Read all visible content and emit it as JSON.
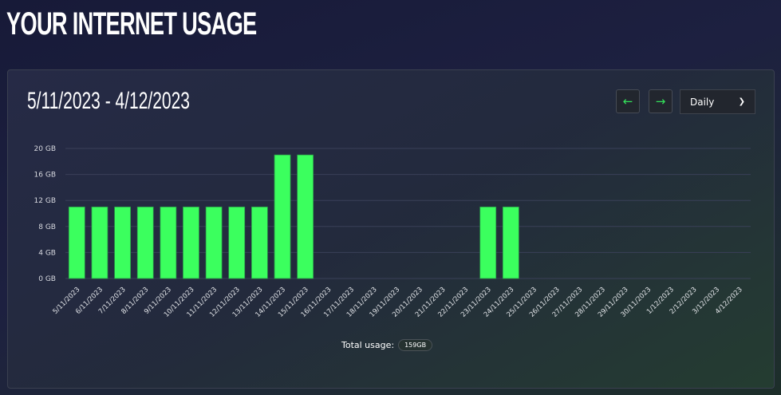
{
  "page_title": "YOUR INTERNET USAGE",
  "date_range": "5/11/2023 - 4/12/2023",
  "controls": {
    "prev_icon": "arrow-left-icon",
    "next_icon": "arrow-right-icon",
    "period": "Daily",
    "accent": "#3bff5e"
  },
  "total": {
    "label": "Total usage:",
    "value": "159GB"
  },
  "chart_data": {
    "type": "bar",
    "categories": [
      "5/11/2023",
      "6/11/2023",
      "7/11/2023",
      "8/11/2023",
      "9/11/2023",
      "10/11/2023",
      "11/11/2023",
      "12/11/2023",
      "13/11/2023",
      "14/11/2023",
      "15/11/2023",
      "16/11/2023",
      "17/11/2023",
      "18/11/2023",
      "19/11/2023",
      "20/11/2023",
      "21/11/2023",
      "22/11/2023",
      "23/11/2023",
      "24/11/2023",
      "25/11/2023",
      "26/11/2023",
      "27/11/2023",
      "28/11/2023",
      "29/11/2023",
      "30/11/2023",
      "1/12/2023",
      "2/12/2023",
      "3/12/2023",
      "4/12/2023"
    ],
    "values": [
      11,
      11,
      11,
      11,
      11,
      11,
      11,
      11,
      11,
      19,
      19,
      0,
      0,
      0,
      0,
      0,
      0,
      0,
      11,
      11,
      0,
      0,
      0,
      0,
      0,
      0,
      0,
      0,
      0,
      0
    ],
    "ylabel": "GB",
    "ylim": [
      0,
      20
    ],
    "yticks": [
      "0 GB",
      "4 GB",
      "8 GB",
      "12 GB",
      "16 GB",
      "20 GB"
    ],
    "grid": true,
    "bar_color": "#3bff5e"
  }
}
